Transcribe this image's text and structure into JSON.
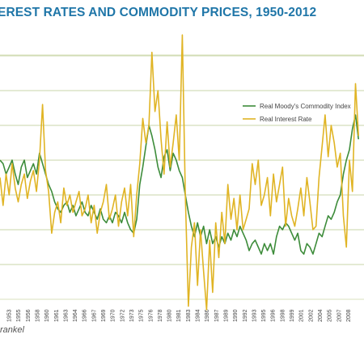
{
  "title": "EREST RATES AND COMMODITY PRICES, 1950-2012",
  "source": "rankel",
  "colors": {
    "commodity": "#3d8c3a",
    "interest": "#e0b424",
    "gridline": "#b9c98c",
    "baseline": "#ccd8a8",
    "title": "#1f76a8"
  },
  "chart_data": {
    "type": "line",
    "title": "EREST RATES AND COMMODITY PRICES, 1950-2012",
    "xlabel": "",
    "ylabel": "",
    "grid": true,
    "legend_placement": "top-right",
    "x_tick_labels": [
      "1953",
      "1955",
      "1956",
      "1958",
      "1960",
      "1961",
      "1963",
      "1964",
      "1966",
      "1967",
      "1969",
      "1970",
      "1972",
      "1973",
      "1975",
      "1976",
      "1978",
      "1980",
      "1981",
      "1983",
      "1984",
      "1986",
      "1987",
      "1989",
      "1990",
      "1992",
      "1993",
      "1995",
      "1996",
      "1998",
      "1999",
      "2001",
      "2002",
      "2004",
      "2005",
      "2007",
      "2008"
    ],
    "series": [
      {
        "name": "Real Moody's Commodity Index",
        "color": "#3d8c3a",
        "x": [
          1950.0,
          1950.5,
          1951.0,
          1951.5,
          1952.0,
          1952.5,
          1953.0,
          1953.5,
          1954.0,
          1954.5,
          1955.0,
          1955.5,
          1956.0,
          1956.5,
          1957.0,
          1957.5,
          1958.0,
          1958.5,
          1959.0,
          1959.5,
          1960.0,
          1960.5,
          1961.0,
          1961.5,
          1962.0,
          1962.5,
          1963.0,
          1963.5,
          1964.0,
          1964.5,
          1965.0,
          1965.5,
          1966.0,
          1966.5,
          1967.0,
          1967.5,
          1968.0,
          1968.5,
          1969.0,
          1969.5,
          1970.0,
          1970.5,
          1971.0,
          1971.5,
          1972.0,
          1972.5,
          1973.0,
          1973.5,
          1974.0,
          1974.5,
          1975.0,
          1975.5,
          1976.0,
          1976.5,
          1977.0,
          1977.5,
          1978.0,
          1978.5,
          1979.0,
          1979.5,
          1980.0,
          1980.5,
          1981.0,
          1981.5,
          1982.0,
          1982.5,
          1983.0,
          1983.5,
          1984.0,
          1984.5,
          1985.0,
          1985.5,
          1986.0,
          1986.5,
          1987.0,
          1987.5,
          1988.0,
          1988.5,
          1989.0,
          1989.5,
          1990.0,
          1990.5,
          1991.0,
          1991.5,
          1992.0,
          1992.5,
          1993.0,
          1993.5,
          1994.0,
          1994.5,
          1995.0,
          1995.5,
          1996.0,
          1996.5,
          1997.0,
          1997.5,
          1998.0,
          1998.5,
          1999.0,
          1999.5,
          2000.0,
          2000.5,
          2001.0,
          2001.5,
          2002.0,
          2002.5,
          2003.0,
          2003.5,
          2004.0,
          2004.5,
          2005.0,
          2005.5,
          2006.0,
          2006.5,
          2007.0,
          2007.5,
          2008.0,
          2008.5,
          2009.0
        ],
        "values": [
          1.0,
          0.9,
          0.6,
          0.8,
          1.0,
          0.6,
          0.3,
          0.8,
          1.0,
          0.5,
          0.7,
          0.9,
          0.6,
          1.2,
          0.9,
          0.6,
          0.3,
          0.1,
          -0.2,
          -0.4,
          -0.5,
          -0.3,
          -0.2,
          -0.5,
          -0.3,
          -0.6,
          -0.4,
          -0.2,
          -0.5,
          -0.6,
          -0.3,
          -0.5,
          -0.7,
          -0.4,
          -0.7,
          -0.8,
          -0.6,
          -0.8,
          -0.5,
          -0.6,
          -0.8,
          -0.5,
          -0.8,
          -1.0,
          -1.1,
          -0.7,
          0.3,
          0.8,
          1.4,
          2.0,
          1.7,
          1.3,
          0.8,
          0.5,
          1.1,
          1.3,
          0.7,
          1.2,
          1.0,
          0.7,
          0.5,
          0.0,
          -0.5,
          -0.9,
          -1.2,
          -0.8,
          -1.2,
          -0.9,
          -1.4,
          -1.0,
          -1.4,
          -1.2,
          -1.5,
          -1.2,
          -1.4,
          -1.1,
          -1.3,
          -1.0,
          -1.2,
          -0.9,
          -1.1,
          -1.3,
          -1.6,
          -1.4,
          -1.3,
          -1.5,
          -1.7,
          -1.4,
          -1.6,
          -1.4,
          -1.7,
          -1.2,
          -0.9,
          -1.0,
          -0.8,
          -0.9,
          -1.1,
          -1.3,
          -1.1,
          -1.6,
          -1.7,
          -1.4,
          -1.5,
          -1.7,
          -1.4,
          -1.1,
          -1.2,
          -0.9,
          -0.6,
          -0.7,
          -0.5,
          -0.2,
          0.0,
          0.6,
          1.0,
          1.3,
          1.9,
          2.3,
          1.6
        ]
      },
      {
        "name": "Real Interest Rate",
        "color": "#e0b424",
        "x": [
          1950.0,
          1950.5,
          1951.0,
          1951.5,
          1952.0,
          1952.5,
          1953.0,
          1953.5,
          1954.0,
          1954.5,
          1955.0,
          1955.5,
          1956.0,
          1956.5,
          1957.0,
          1957.5,
          1958.0,
          1958.5,
          1959.0,
          1959.5,
          1960.0,
          1960.5,
          1961.0,
          1961.5,
          1962.0,
          1962.5,
          1963.0,
          1963.5,
          1964.0,
          1964.5,
          1965.0,
          1965.5,
          1966.0,
          1966.5,
          1967.0,
          1967.5,
          1968.0,
          1968.5,
          1969.0,
          1969.5,
          1970.0,
          1970.5,
          1971.0,
          1971.5,
          1972.0,
          1972.5,
          1973.0,
          1973.5,
          1974.0,
          1974.5,
          1975.0,
          1975.5,
          1976.0,
          1976.5,
          1977.0,
          1977.5,
          1978.0,
          1978.5,
          1979.0,
          1979.5,
          1980.0,
          1980.5,
          1981.0,
          1981.5,
          1982.0,
          1982.5,
          1983.0,
          1983.5,
          1984.0,
          1984.5,
          1985.0,
          1985.5,
          1986.0,
          1986.5,
          1987.0,
          1987.5,
          1988.0,
          1988.5,
          1989.0,
          1989.5,
          1990.0,
          1990.5,
          1991.0,
          1991.5,
          1992.0,
          1992.5,
          1993.0,
          1993.5,
          1994.0,
          1994.5,
          1995.0,
          1995.5,
          1996.0,
          1996.5,
          1997.0,
          1997.5,
          1998.0,
          1998.5,
          1999.0,
          1999.5,
          2000.0,
          2000.5,
          2001.0,
          2001.5,
          2002.0,
          2002.5,
          2003.0,
          2003.5,
          2004.0,
          2004.5,
          2005.0,
          2005.5,
          2006.0,
          2006.5,
          2007.0,
          2007.5,
          2008.0,
          2008.5,
          2009.0
        ],
        "values": [
          0.5,
          -0.3,
          0.6,
          0.0,
          0.9,
          0.2,
          -0.2,
          0.3,
          0.6,
          -0.1,
          0.4,
          0.7,
          0.1,
          1.0,
          2.6,
          0.7,
          0.1,
          -1.1,
          -0.5,
          -0.2,
          -0.8,
          0.2,
          -0.3,
          0.0,
          -0.5,
          -0.2,
          0.1,
          -0.6,
          -0.4,
          0.0,
          -0.8,
          -0.3,
          -1.1,
          -0.5,
          -0.2,
          0.3,
          -0.7,
          -0.4,
          0.0,
          -0.9,
          -0.2,
          0.2,
          -0.6,
          0.3,
          -1.2,
          0.0,
          0.9,
          2.2,
          1.5,
          2.0,
          4.1,
          2.4,
          3.0,
          1.6,
          0.6,
          2.1,
          0.8,
          1.5,
          2.3,
          1.0,
          4.6,
          0.0,
          -3.2,
          -1.5,
          -0.8,
          -2.6,
          -1.0,
          -2.2,
          -3.3,
          -1.3,
          -2.8,
          -0.8,
          -1.8,
          -0.5,
          -1.4,
          0.3,
          -0.7,
          -0.1,
          -1.0,
          0.0,
          -1.0,
          -0.7,
          -0.4,
          0.9,
          0.3,
          1.0,
          -0.3,
          0.0,
          0.5,
          -0.6,
          0.6,
          -0.2,
          0.3,
          0.8,
          -0.9,
          -0.1,
          -0.6,
          -0.9,
          -0.4,
          0.2,
          -0.6,
          0.5,
          -0.2,
          -1.0,
          -0.9,
          0.5,
          1.4,
          2.3,
          1.1,
          2.0,
          1.5,
          0.8,
          1.2,
          -0.6,
          -1.5,
          1.0,
          0.1,
          3.2,
          1.7
        ]
      }
    ]
  }
}
